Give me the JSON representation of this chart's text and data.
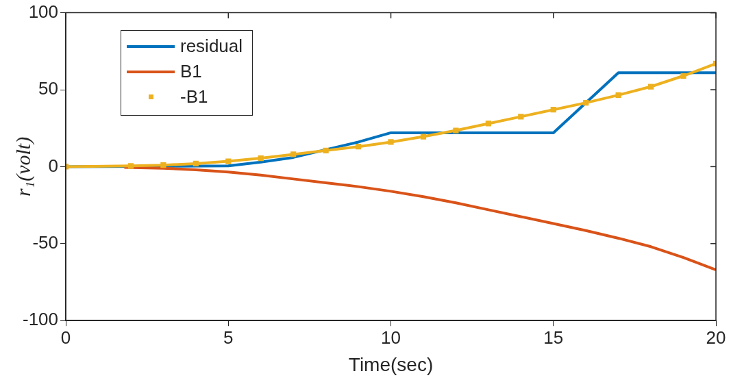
{
  "chart_data": {
    "type": "line",
    "xlabel": "Time(sec)",
    "ylabel": "r₁(volt)",
    "xlim": [
      0,
      20
    ],
    "xticks": [
      0,
      5,
      10,
      15,
      20
    ],
    "ylim": [
      -100,
      100
    ],
    "yticks": [
      -100,
      -50,
      0,
      50,
      100
    ],
    "legend": "top left",
    "grid": false,
    "series": [
      {
        "name": "residual",
        "color": "#0072bd",
        "x": [
          0,
          5,
          6,
          7,
          8,
          9,
          10,
          15,
          17,
          20
        ],
        "values": [
          0,
          0.5,
          3,
          6,
          11,
          16,
          22,
          22,
          61,
          61
        ]
      },
      {
        "name": "B1",
        "color": "#d95319",
        "x": [
          1.8,
          3,
          4,
          5,
          6,
          7,
          8,
          9,
          10,
          11,
          12,
          13,
          14,
          15,
          16,
          17,
          18,
          19,
          20
        ],
        "values": [
          -0.5,
          -1,
          -2,
          -3.5,
          -5.5,
          -8,
          -10.5,
          -13,
          -16,
          -19.5,
          -23.5,
          -28,
          -32.5,
          -37,
          -41.5,
          -46.5,
          -52,
          -59,
          -67
        ]
      },
      {
        "name": "-B1",
        "color": "#edb120",
        "marker": "square",
        "x": [
          0,
          2,
          3,
          4,
          5,
          6,
          7,
          8,
          9,
          10,
          11,
          12,
          13,
          14,
          15,
          16,
          17,
          18,
          19,
          20
        ],
        "values": [
          0,
          0.5,
          1,
          2,
          3.5,
          5.5,
          8,
          10.5,
          13,
          16,
          19.5,
          23.5,
          28,
          32.5,
          37,
          41.5,
          46.5,
          52,
          59,
          67
        ]
      }
    ]
  }
}
